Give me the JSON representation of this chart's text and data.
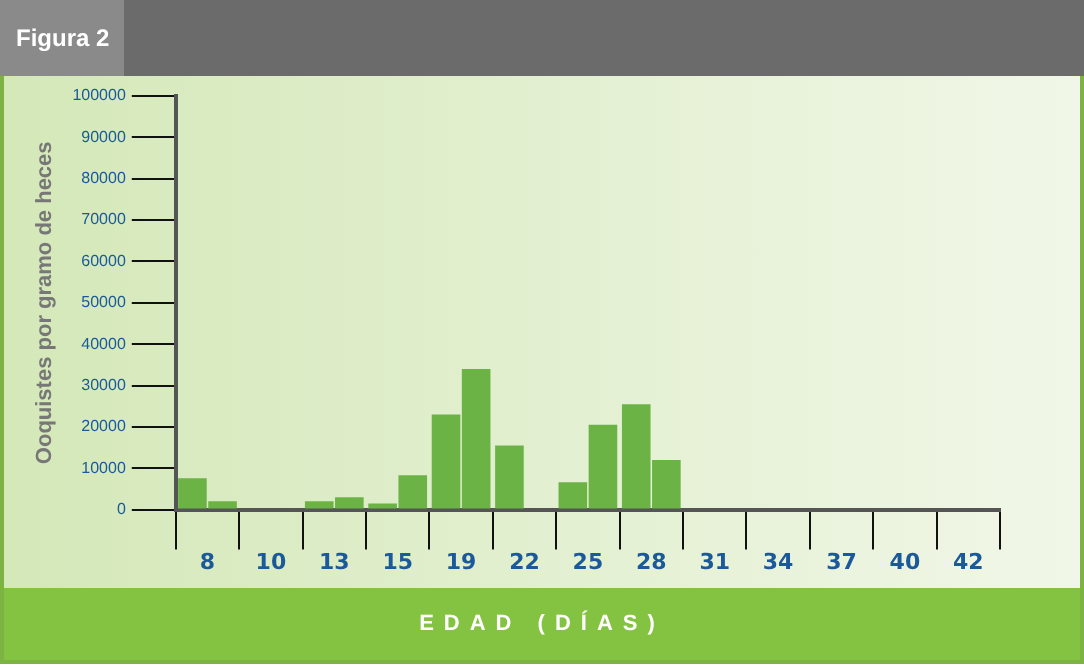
{
  "chart_data": {
    "type": "bar",
    "title": "Figura 2",
    "xlabel": "EDAD (DÍAS)",
    "ylabel": "Ooquistes por gramo de heces",
    "categories": [
      "8",
      "10",
      "13",
      "15",
      "19",
      "22",
      "25",
      "28",
      "31",
      "34",
      "37",
      "40",
      "42"
    ],
    "series": [
      {
        "color": "#6ab344",
        "values": [
          7600,
          0,
          2000,
          1500,
          23000,
          15500,
          6600,
          25500,
          0,
          0,
          0,
          0,
          0
        ]
      },
      {
        "color": "#6ab344",
        "values": [
          2000,
          0,
          3000,
          8300,
          34000,
          0,
          20500,
          12000,
          0,
          0,
          0,
          0,
          0
        ]
      }
    ],
    "ylim": [
      0,
      100000
    ],
    "yticks": [
      0,
      10000,
      20000,
      30000,
      40000,
      50000,
      60000,
      70000,
      80000,
      90000,
      100000
    ],
    "grid": false,
    "legend": false
  }
}
